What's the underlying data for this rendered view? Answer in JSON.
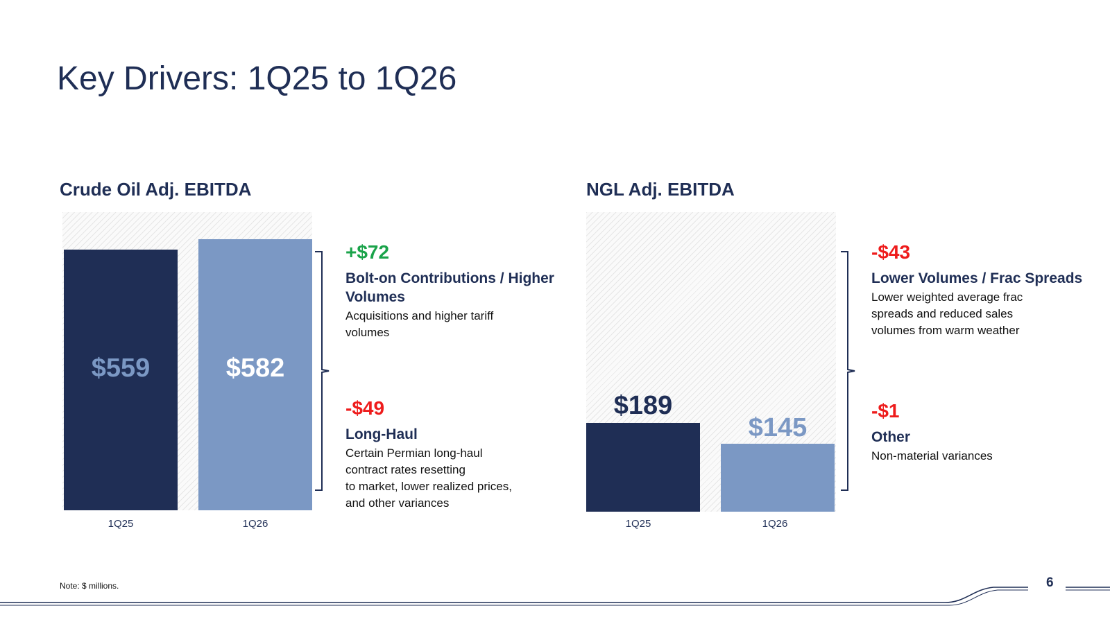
{
  "title": "Key Drivers: 1Q25 to 1Q26",
  "chart_data": [
    {
      "type": "bar",
      "title": "Crude Oil Adj. EBITDA",
      "categories": [
        "1Q25",
        "1Q26"
      ],
      "values": [
        559,
        582
      ],
      "value_labels": [
        "$559",
        "$582"
      ],
      "colors": [
        "#1f2e55",
        "#7b98c4"
      ],
      "label_colors": [
        "#7b98c4",
        "#ffffff"
      ],
      "ylim": [
        0,
        640
      ]
    },
    {
      "type": "bar",
      "title": "NGL Adj. EBITDA",
      "categories": [
        "1Q25",
        "1Q26"
      ],
      "values": [
        189,
        145
      ],
      "value_labels": [
        "$189",
        "$145"
      ],
      "colors": [
        "#1f2e55",
        "#7b98c4"
      ],
      "label_colors": [
        "#1f2e55",
        "#7b98c4"
      ],
      "ylim": [
        0,
        640
      ]
    }
  ],
  "drivers": {
    "crude": [
      {
        "amount": "+$72",
        "title": "Bolt-on Contributions / Higher Volumes",
        "lines": [
          "Acquisitions and higher tariff",
          "volumes"
        ]
      },
      {
        "amount": "-$49",
        "title": "Long-Haul",
        "lines": [
          "Certain Permian long-haul",
          "contract rates resetting",
          "to market, lower realized prices,",
          "and other variances"
        ]
      }
    ],
    "ngl": [
      {
        "amount": "-$43",
        "title": "Lower Volumes / Frac Spreads",
        "lines": [
          "Lower weighted average frac",
          "spreads and reduced sales",
          "volumes from warm weather"
        ]
      },
      {
        "amount": "-$1",
        "title": "Other",
        "lines": [
          "Non-material variances"
        ]
      }
    ]
  },
  "footer": {
    "note": "Note: $ millions.",
    "page_number": "6"
  },
  "colors": {
    "navy": "#1f2e55",
    "light_blue": "#7b98c4",
    "positive": "#1aa34a",
    "negative": "#ee1c1c"
  }
}
